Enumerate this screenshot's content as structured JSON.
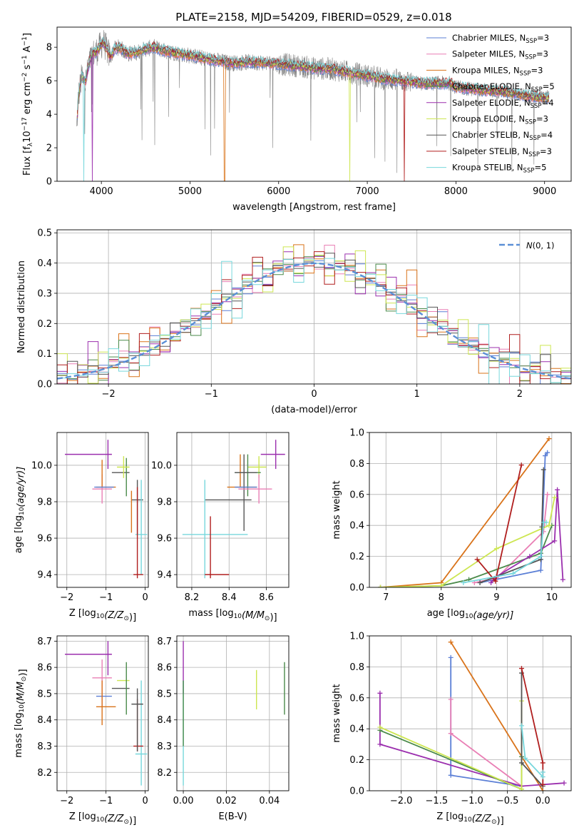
{
  "title": "PLATE=2158, MJD=54209, FIBERID=0529, z=0.018",
  "colors": {
    "Chabrier MILES": "#5b7fd6",
    "Salpeter MILES": "#e97fb5",
    "Kroupa MILES": "#d9731a",
    "Chabrier ELODIE": "#4a8a4a",
    "Salpeter ELODIE": "#9b2fae",
    "Kroupa ELODIE": "#cde651",
    "Chabrier STELIB": "#555555",
    "Salpeter STELIB": "#b01e1e",
    "Kroupa STELIB": "#77d7dc",
    "data": "#808080",
    "normal": "#5b8fd6"
  },
  "chart_data": [
    {
      "id": "spectrum",
      "type": "line",
      "xlabel": "wavelength [Angstrom, rest frame]",
      "ylabel": "Flux [f",
      "ylabel_parts": [
        "λ",
        "10",
        "-17",
        " erg cm",
        "-2",
        " s",
        "-1",
        " A",
        "-1",
        "]"
      ],
      "xlim": [
        3500,
        9300
      ],
      "ylim": [
        0,
        9.2
      ],
      "xticks": [
        4000,
        5000,
        6000,
        7000,
        8000,
        9000
      ],
      "yticks": [
        0,
        2,
        4,
        6,
        8
      ],
      "continuum": {
        "x": [
          3720,
          3740,
          3780,
          3820,
          3860,
          3900,
          3940,
          3980,
          4020,
          4060,
          4100,
          4150,
          4200,
          4300,
          4400,
          4500,
          4600,
          4700,
          4800,
          4900,
          5000,
          5100,
          5200,
          5300,
          5400,
          5500,
          5600,
          5800,
          6000,
          6200,
          6400,
          6600,
          6800,
          7000,
          7200,
          7400,
          7600,
          7800,
          7950,
          8000,
          8100,
          8200,
          8400,
          8600,
          8800,
          9000,
          9050
        ],
        "y": [
          3.0,
          5.0,
          6.3,
          5.9,
          7.0,
          7.6,
          7.7,
          8.0,
          8.3,
          7.9,
          7.4,
          7.9,
          8.0,
          7.6,
          7.7,
          7.9,
          8.0,
          7.8,
          7.7,
          7.6,
          7.5,
          7.4,
          7.3,
          7.2,
          7.1,
          7.05,
          7.1,
          7.1,
          7.0,
          6.9,
          6.75,
          6.7,
          6.5,
          6.3,
          6.1,
          6.0,
          5.85,
          5.85,
          5.85,
          5.6,
          5.55,
          5.5,
          5.4,
          5.3,
          5.1,
          5.0,
          5.0
        ]
      },
      "legend": [
        {
          "label": "Chabrier MILES",
          "n": "3"
        },
        {
          "label": "Salpeter MILES",
          "n": "3"
        },
        {
          "label": "Kroupa MILES",
          "n": "3"
        },
        {
          "label": "Chabrier ELODIE",
          "n": "5"
        },
        {
          "label": "Salpeter ELODIE",
          "n": "4"
        },
        {
          "label": "Kroupa ELODIE",
          "n": "3"
        },
        {
          "label": "Chabrier STELIB",
          "n": "4"
        },
        {
          "label": "Salpeter STELIB",
          "n": "3"
        },
        {
          "label": "Kroupa STELIB",
          "n": "5"
        }
      ],
      "legend_sub": "SSP",
      "legend_prefix": "N",
      "legend_placement": "upper right",
      "grid": false
    },
    {
      "id": "residuals",
      "type": "histogram",
      "xlabel": "(data-model)/error",
      "ylabel": "Normed distribution",
      "xlim": [
        -2.5,
        2.5
      ],
      "ylim": [
        0,
        0.51
      ],
      "xticks": [
        -2,
        -1,
        0,
        1,
        2
      ],
      "yticks": [
        0.0,
        0.1,
        0.2,
        0.3,
        0.4,
        0.5
      ],
      "bin_width": 0.1,
      "legend": "N(0,1)",
      "legend_placement": "upper right",
      "grid": true,
      "wiggle": [
        0.0,
        0.015,
        -0.01,
        0.02,
        -0.015,
        0.05,
        -0.02,
        0.01,
        -0.03,
        0.025,
        0.04,
        -0.035,
        0.015,
        0.06,
        -0.04,
        0.03,
        0.08,
        -0.06,
        0.02,
        -0.025,
        0.05,
        -0.01,
        0.035,
        -0.05,
        0.01
      ]
    },
    {
      "id": "age-vs-z",
      "type": "scatter",
      "xlabel": "Z [log",
      "xlabel_parts": [
        "10",
        "(Z/Z",
        "⊙",
        ")]"
      ],
      "ylabel": "age  [log",
      "ylabel_parts": [
        "10",
        "(age/yr)]"
      ],
      "xlim": [
        -2.25,
        0.08
      ],
      "ylim": [
        9.33,
        10.18
      ],
      "xticks": [
        -2,
        -1,
        0
      ],
      "yticks": [
        9.4,
        9.6,
        9.8,
        10.0
      ],
      "grid": true,
      "points": [
        {
          "model": "Salpeter ELODIE",
          "x": -1.45,
          "y": 10.06,
          "xlo": -2.05,
          "xhi": -0.85,
          "ylo": 10.06,
          "yhi": 10.06
        },
        {
          "model": "Salpeter ELODIE",
          "x": -0.95,
          "y": 10.06,
          "xlo": -0.95,
          "xhi": -0.95,
          "ylo": 9.98,
          "yhi": 10.14
        },
        {
          "model": "Salpeter MILES",
          "x": -1.1,
          "y": 9.87,
          "xlo": -1.35,
          "xhi": -0.85,
          "ylo": 9.79,
          "yhi": 9.95
        },
        {
          "model": "Kroupa MILES",
          "x": -1.1,
          "y": 9.88,
          "xlo": -1.25,
          "xhi": -0.75,
          "ylo": 9.88,
          "yhi": 10.03
        },
        {
          "model": "Chabrier MILES",
          "x": -1.05,
          "y": 9.88,
          "xlo": -1.3,
          "xhi": -0.8,
          "ylo": 9.88,
          "yhi": 9.88
        },
        {
          "model": "Chabrier STELIB",
          "x": -0.6,
          "y": 9.96,
          "xlo": -0.85,
          "xhi": -0.4,
          "ylo": 9.96,
          "yhi": 9.96
        },
        {
          "model": "Chabrier ELODIE",
          "x": -0.48,
          "y": 9.96,
          "xlo": -0.48,
          "xhi": -0.48,
          "ylo": 9.83,
          "yhi": 10.04
        },
        {
          "model": "Kroupa ELODIE",
          "x": -0.55,
          "y": 9.99,
          "xlo": -0.72,
          "xhi": -0.4,
          "ylo": 9.93,
          "yhi": 10.05
        },
        {
          "model": "Chabrier STELIB",
          "x": -0.2,
          "y": 9.81,
          "xlo": -0.35,
          "xhi": -0.05,
          "ylo": 9.62,
          "yhi": 9.92
        },
        {
          "model": "Kroupa STELIB",
          "x": -0.1,
          "y": 9.62,
          "xlo": -0.25,
          "xhi": 0.05,
          "ylo": 9.4,
          "yhi": 9.92
        },
        {
          "model": "Salpeter STELIB",
          "x": -0.2,
          "y": 9.4,
          "xlo": -0.3,
          "xhi": -0.05,
          "ylo": 9.38,
          "yhi": 9.88
        },
        {
          "model": "Kroupa MILES",
          "x": -0.35,
          "y": 9.63,
          "xlo": -0.35,
          "xhi": -0.35,
          "ylo": 9.63,
          "yhi": 9.86
        }
      ]
    },
    {
      "id": "age-vs-mass",
      "type": "scatter",
      "xlabel": "mass [log",
      "xlabel_parts": [
        "10",
        "(M/M",
        "⊙",
        ")]"
      ],
      "ylabel": "",
      "xlim": [
        8.12,
        8.72
      ],
      "ylim": [
        9.33,
        10.18
      ],
      "xticks": [
        8.2,
        8.4,
        8.6
      ],
      "yticks": [
        9.4,
        9.6,
        9.8,
        10.0
      ],
      "grid": true,
      "points": [
        {
          "model": "Salpeter ELODIE",
          "x": 8.65,
          "y": 10.06,
          "xlo": 8.57,
          "xhi": 8.7,
          "ylo": 9.98,
          "yhi": 10.14
        },
        {
          "model": "Kroupa ELODIE",
          "x": 8.56,
          "y": 9.99,
          "xlo": 8.5,
          "xhi": 8.6,
          "ylo": 9.93,
          "yhi": 10.05
        },
        {
          "model": "Kroupa MILES",
          "x": 8.46,
          "y": 9.88,
          "xlo": 8.39,
          "xhi": 8.55,
          "ylo": 9.88,
          "yhi": 10.06
        },
        {
          "model": "Chabrier ELODIE",
          "x": 8.5,
          "y": 9.96,
          "xlo": 8.43,
          "xhi": 8.57,
          "ylo": 9.83,
          "yhi": 10.06
        },
        {
          "model": "Chabrier STELIB",
          "x": 8.48,
          "y": 9.96,
          "xlo": 8.43,
          "xhi": 8.55,
          "ylo": 9.64,
          "yhi": 10.06
        },
        {
          "model": "Salpeter MILES",
          "x": 8.56,
          "y": 9.87,
          "xlo": 8.45,
          "xhi": 8.63,
          "ylo": 9.79,
          "yhi": 9.95
        },
        {
          "model": "Chabrier MILES",
          "x": 8.49,
          "y": 9.88,
          "xlo": 8.43,
          "xhi": 8.55,
          "ylo": 9.88,
          "yhi": 9.88
        },
        {
          "model": "Chabrier STELIB",
          "x": 8.47,
          "y": 9.81,
          "xlo": 8.27,
          "xhi": 8.52,
          "ylo": 9.81,
          "yhi": 9.81
        },
        {
          "model": "Kroupa STELIB",
          "x": 8.27,
          "y": 9.62,
          "xlo": 8.15,
          "xhi": 8.5,
          "ylo": 9.38,
          "yhi": 9.92
        },
        {
          "model": "Salpeter STELIB",
          "x": 8.3,
          "y": 9.4,
          "xlo": 8.27,
          "xhi": 8.4,
          "ylo": 9.38,
          "yhi": 9.72
        }
      ]
    },
    {
      "id": "mass-weight-vs-age",
      "type": "line",
      "xlabel": "age  [log",
      "xlabel_parts": [
        "10",
        "(age/yr)]"
      ],
      "ylabel": "mass weight",
      "xlim": [
        6.7,
        10.35
      ],
      "ylim": [
        0,
        1.0
      ],
      "xticks": [
        7,
        8,
        9,
        10
      ],
      "yticks": [
        0.0,
        0.2,
        0.4,
        0.6,
        0.8,
        1.0
      ],
      "grid": true,
      "series": [
        {
          "model": "Chabrier MILES",
          "x": [
            8.7,
            9.8,
            9.88,
            9.92
          ],
          "y": [
            0.03,
            0.11,
            0.85,
            0.87
          ]
        },
        {
          "model": "Salpeter MILES",
          "x": [
            8.6,
            9.0,
            9.85,
            9.92
          ],
          "y": [
            0.03,
            0.06,
            0.36,
            0.6
          ]
        },
        {
          "model": "Kroupa MILES",
          "x": [
            6.9,
            8.0,
            9.95
          ],
          "y": [
            0.0,
            0.03,
            0.96
          ]
        },
        {
          "model": "Chabrier ELODIE",
          "x": [
            6.9,
            8.0,
            8.5,
            9.8,
            10.0
          ],
          "y": [
            0.0,
            0.01,
            0.05,
            0.22,
            0.4
          ]
        },
        {
          "model": "Salpeter ELODIE",
          "x": [
            8.9,
            9.0,
            9.6,
            10.05,
            10.1,
            10.2
          ],
          "y": [
            0.03,
            0.07,
            0.2,
            0.3,
            0.63,
            0.05
          ]
        },
        {
          "model": "Kroupa ELODIE",
          "x": [
            6.9,
            8.0,
            9.0,
            9.95,
            10.05
          ],
          "y": [
            0.0,
            0.01,
            0.25,
            0.4,
            0.58
          ]
        },
        {
          "model": "Chabrier STELIB",
          "x": [
            8.7,
            9.0,
            9.8,
            9.82,
            9.85
          ],
          "y": [
            0.03,
            0.07,
            0.18,
            0.39,
            0.76
          ]
        },
        {
          "model": "Salpeter STELIB",
          "x": [
            8.65,
            8.98,
            9.45
          ],
          "y": [
            0.18,
            0.04,
            0.79
          ]
        },
        {
          "model": "Kroupa STELIB",
          "x": [
            8.4,
            9.3,
            9.8,
            9.85,
            9.9
          ],
          "y": [
            0.03,
            0.09,
            0.2,
            0.42,
            0.42
          ]
        }
      ]
    },
    {
      "id": "mass-vs-z",
      "type": "scatter",
      "xlabel": "Z [log",
      "xlabel_parts": [
        "10",
        "(Z/Z",
        "⊙",
        ")]"
      ],
      "ylabel": "mass [log",
      "ylabel_parts": [
        "10",
        "(M/M",
        "⊙",
        ")]"
      ],
      "xlim": [
        -2.25,
        0.08
      ],
      "ylim": [
        8.13,
        8.72
      ],
      "xticks": [
        -2,
        -1,
        0
      ],
      "yticks": [
        8.2,
        8.3,
        8.4,
        8.5,
        8.6,
        8.7
      ],
      "grid": true,
      "points": [
        {
          "model": "Salpeter ELODIE",
          "x": -1.45,
          "y": 8.65,
          "xlo": -2.05,
          "xhi": -0.85,
          "ylo": 8.65,
          "yhi": 8.65
        },
        {
          "model": "Salpeter ELODIE",
          "x": -0.95,
          "y": 8.65,
          "xlo": -0.95,
          "xhi": -0.95,
          "ylo": 8.57,
          "yhi": 8.7
        },
        {
          "model": "Salpeter MILES",
          "x": -1.1,
          "y": 8.56,
          "xlo": -1.35,
          "xhi": -0.85,
          "ylo": 8.45,
          "yhi": 8.63
        },
        {
          "model": "Chabrier MILES",
          "x": -1.1,
          "y": 8.49,
          "xlo": -1.25,
          "xhi": -0.85,
          "ylo": 8.49,
          "yhi": 8.49
        },
        {
          "model": "Kroupa MILES",
          "x": -1.1,
          "y": 8.45,
          "xlo": -1.25,
          "xhi": -0.75,
          "ylo": 8.38,
          "yhi": 8.55
        },
        {
          "model": "Kroupa ELODIE",
          "x": -0.6,
          "y": 8.55,
          "xlo": -0.72,
          "xhi": -0.4,
          "ylo": 8.55,
          "yhi": 8.55
        },
        {
          "model": "Chabrier STELIB",
          "x": -0.6,
          "y": 8.52,
          "xlo": -0.85,
          "xhi": -0.4,
          "ylo": 8.52,
          "yhi": 8.52
        },
        {
          "model": "Chabrier ELODIE",
          "x": -0.48,
          "y": 8.52,
          "xlo": -0.48,
          "xhi": -0.48,
          "ylo": 8.42,
          "yhi": 8.62
        },
        {
          "model": "Kroupa STELIB",
          "x": -0.1,
          "y": 8.27,
          "xlo": -0.25,
          "xhi": 0.05,
          "ylo": 8.15,
          "yhi": 8.55
        },
        {
          "model": "Salpeter STELIB",
          "x": -0.2,
          "y": 8.3,
          "xlo": -0.3,
          "xhi": -0.05,
          "ylo": 8.28,
          "yhi": 8.48
        },
        {
          "model": "Chabrier STELIB",
          "x": -0.2,
          "y": 8.46,
          "xlo": -0.35,
          "xhi": -0.05,
          "ylo": 8.28,
          "yhi": 8.52
        }
      ]
    },
    {
      "id": "mass-vs-ebv",
      "type": "scatter",
      "xlabel": "E(B-V)",
      "ylabel": "",
      "xlim": [
        -0.003,
        0.049
      ],
      "ylim": [
        8.13,
        8.72
      ],
      "xticks": [
        0.0,
        0.02,
        0.04
      ],
      "xtick_labels": [
        "0.00",
        "0.02",
        "0.04"
      ],
      "yticks": [
        8.2,
        8.3,
        8.4,
        8.5,
        8.6,
        8.7
      ],
      "grid": true,
      "points": [
        {
          "model": "Salpeter ELODIE",
          "x": 0.0,
          "y": 8.6,
          "xlo": 0.0,
          "xhi": 0.0,
          "ylo": 8.5,
          "yhi": 8.7
        },
        {
          "model": "Kroupa STELIB",
          "x": 0.0,
          "y": 8.3,
          "xlo": 0.0,
          "xhi": 0.0,
          "ylo": 8.15,
          "yhi": 8.55
        },
        {
          "model": "Chabrier ELODIE",
          "x": 0.0,
          "y": 8.4,
          "xlo": 0.0,
          "xhi": 0.0,
          "ylo": 8.3,
          "yhi": 8.55
        },
        {
          "model": "Kroupa ELODIE",
          "x": 0.034,
          "y": 8.52,
          "xlo": 0.034,
          "xhi": 0.034,
          "ylo": 8.44,
          "yhi": 8.59
        },
        {
          "model": "Chabrier ELODIE",
          "x": 0.047,
          "y": 8.52,
          "xlo": 0.047,
          "xhi": 0.047,
          "ylo": 8.42,
          "yhi": 8.62
        }
      ]
    },
    {
      "id": "mass-weight-vs-z",
      "type": "line",
      "xlabel": "Z [log",
      "xlabel_parts": [
        "10",
        "(Z/Z",
        "⊙",
        ")]"
      ],
      "ylabel": "mass weight",
      "xlim": [
        -2.45,
        0.4
      ],
      "ylim": [
        0,
        1.0
      ],
      "xticks": [
        -2.0,
        -1.5,
        -1.0,
        -0.5,
        0.0
      ],
      "xtick_labels": [
        "−2.0",
        "−1.5",
        "−1.0",
        "−0.5",
        "0.0"
      ],
      "yticks": [
        0.0,
        0.2,
        0.4,
        0.6,
        0.8,
        1.0
      ],
      "grid": true,
      "series": [
        {
          "model": "Chabrier MILES",
          "x": [
            -1.3,
            -1.3,
            -0.3
          ],
          "y": [
            0.86,
            0.1,
            0.03
          ]
        },
        {
          "model": "Salpeter MILES",
          "x": [
            -1.3,
            -1.3,
            -0.3
          ],
          "y": [
            0.59,
            0.37,
            0.03
          ]
        },
        {
          "model": "Kroupa MILES",
          "x": [
            -1.3,
            0.0
          ],
          "y": [
            0.96,
            0.0
          ]
        },
        {
          "model": "Salpeter ELODIE",
          "x": [
            -2.3,
            -2.3,
            -0.3,
            0.3
          ],
          "y": [
            0.63,
            0.3,
            0.03,
            0.05
          ]
        },
        {
          "model": "Chabrier ELODIE",
          "x": [
            -2.3,
            -0.3,
            -0.3
          ],
          "y": [
            0.39,
            0.01,
            0.22
          ]
        },
        {
          "model": "Kroupa ELODIE",
          "x": [
            -2.3,
            -0.3,
            -0.3
          ],
          "y": [
            0.41,
            0.01,
            0.58
          ]
        },
        {
          "model": "Chabrier STELIB",
          "x": [
            -0.3,
            -0.3,
            0.0
          ],
          "y": [
            0.76,
            0.18,
            0.03
          ]
        },
        {
          "model": "Salpeter STELIB",
          "x": [
            -0.3,
            0.0,
            0.0
          ],
          "y": [
            0.79,
            0.18,
            0.04
          ]
        },
        {
          "model": "Kroupa STELIB",
          "x": [
            -0.3,
            -0.25,
            0.0,
            0.0
          ],
          "y": [
            0.42,
            0.21,
            0.09,
            0.12
          ]
        }
      ]
    }
  ]
}
